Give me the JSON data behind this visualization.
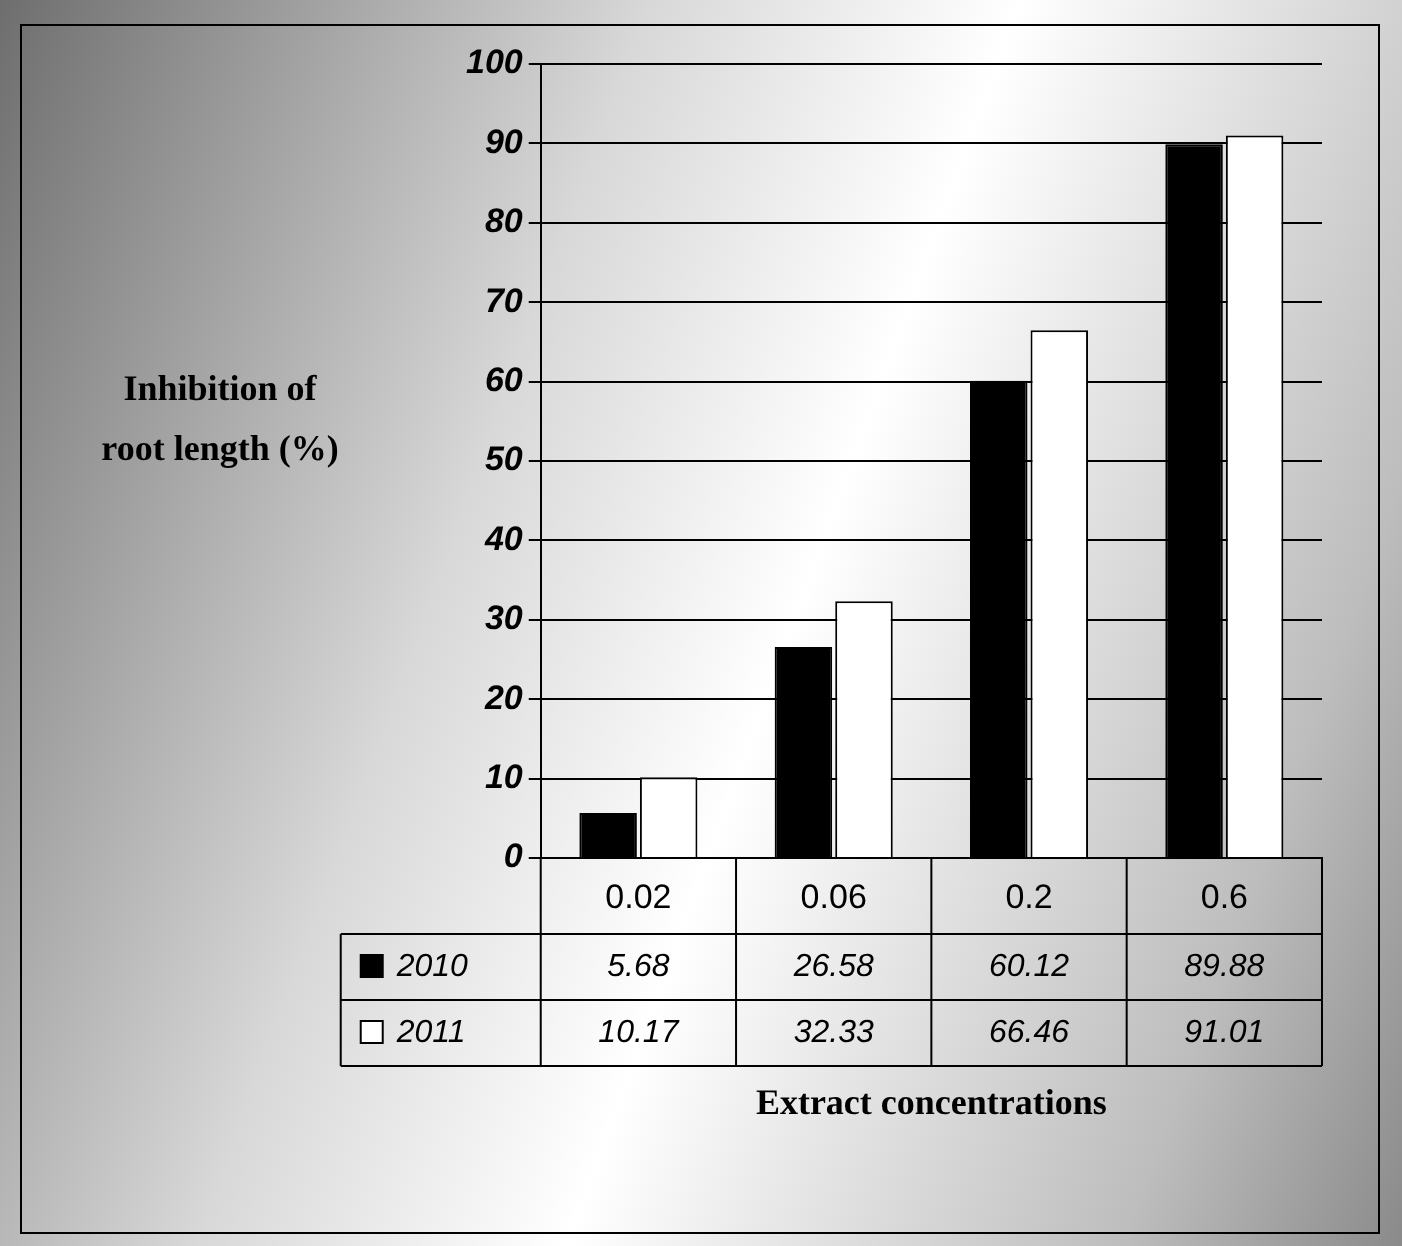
{
  "chart_data": {
    "type": "bar",
    "xlabel": "Extract concentrations",
    "ylabel": "Inhibition of root length (%)",
    "categories": [
      "0.02",
      "0.06",
      "0.2",
      "0.6"
    ],
    "series": [
      {
        "name": "2010",
        "color": "#000000",
        "values": [
          5.68,
          26.58,
          60.12,
          89.88
        ]
      },
      {
        "name": "2011",
        "color": "#ffffff",
        "values": [
          10.17,
          32.33,
          66.46,
          91.01
        ]
      }
    ],
    "ylim": [
      0,
      100
    ],
    "yticks": [
      0,
      10,
      20,
      30,
      40,
      50,
      60,
      70,
      80,
      90,
      100
    ],
    "grid": "y",
    "legend": "bottom",
    "data_labels": true
  }
}
